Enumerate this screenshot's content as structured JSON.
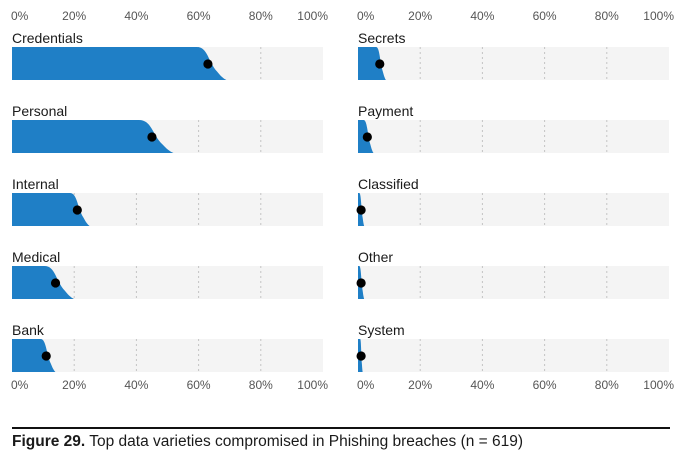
{
  "caption": {
    "label": "Figure 29.",
    "text": "Top data varieties compromised in Phishing breaches (n = 619)"
  },
  "chart_data": {
    "type": "bar",
    "xlim": [
      0,
      100
    ],
    "x_ticks": [
      "0%",
      "20%",
      "40%",
      "60%",
      "80%",
      "100%"
    ],
    "colors": {
      "bar": "#1f7fc6",
      "track": "#f4f4f4",
      "grid": "#c4c4c4",
      "point": "#000000"
    },
    "panels": [
      {
        "position": "left",
        "categories": [
          {
            "name": "Credentials",
            "value": 63,
            "upper": 69
          },
          {
            "name": "Personal",
            "value": 45,
            "upper": 52
          },
          {
            "name": "Internal",
            "value": 21,
            "upper": 25
          },
          {
            "name": "Medical",
            "value": 14,
            "upper": 20
          },
          {
            "name": "Bank",
            "value": 11,
            "upper": 14
          }
        ]
      },
      {
        "position": "right",
        "categories": [
          {
            "name": "Secrets",
            "value": 7,
            "upper": 9
          },
          {
            "name": "Payment",
            "value": 3,
            "upper": 5
          },
          {
            "name": "Classified",
            "value": 1,
            "upper": 2
          },
          {
            "name": "Other",
            "value": 1,
            "upper": 2
          },
          {
            "name": "System",
            "value": 1,
            "upper": 1.5
          }
        ]
      }
    ]
  }
}
